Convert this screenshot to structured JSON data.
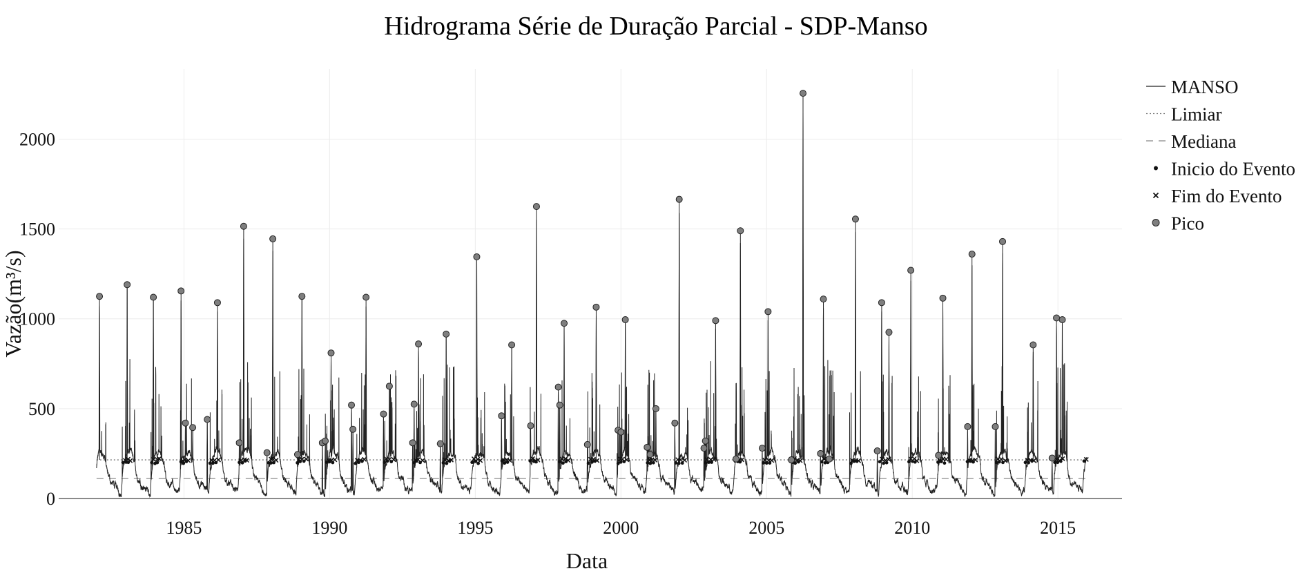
{
  "chart_data": {
    "type": "line",
    "title": "Hidrograma Série de Duração Parcial - SDP-Manso",
    "xlabel": "Data",
    "ylabel": "Vazão(m³/s)",
    "xlim": [
      1980.7,
      2017.2
    ],
    "ylim": [
      0,
      2390
    ],
    "x_ticks": [
      1985,
      1990,
      1995,
      2000,
      2005,
      2010,
      2015
    ],
    "x_tick_labels": [
      "1985",
      "1990",
      "1995",
      "2000",
      "2005",
      "2010",
      "2015"
    ],
    "y_ticks": [
      0,
      500,
      1000,
      1500,
      2000
    ],
    "y_tick_labels": [
      "0",
      "500",
      "1000",
      "1500",
      "2000"
    ],
    "grid": true,
    "legend_position": "right",
    "threshold": 215,
    "median": 112,
    "series": [
      {
        "name": "MANSO",
        "kind": "line",
        "color": "#222222",
        "dash": "solid"
      },
      {
        "name": "Limiar",
        "kind": "line",
        "color": "#777777",
        "dash": "dotted"
      },
      {
        "name": "Mediana",
        "kind": "line",
        "color": "#888888",
        "dash": "dashed"
      },
      {
        "name": "Inicio do Evento",
        "kind": "marker",
        "marker": "dot",
        "color": "#111111"
      },
      {
        "name": "Fim do Evento",
        "kind": "marker",
        "marker": "x",
        "color": "#111111"
      },
      {
        "name": "Pico",
        "kind": "marker",
        "marker": "circle",
        "color": "#7f7f7f"
      }
    ],
    "peaks": {
      "x": [
        1982.1,
        1983.05,
        1983.95,
        1984.9,
        1985.05,
        1985.3,
        1985.8,
        1986.15,
        1986.9,
        1987.05,
        1987.85,
        1988.05,
        1988.9,
        1989.05,
        1989.75,
        1989.85,
        1990.05,
        1990.75,
        1990.8,
        1991.25,
        1991.85,
        1992.05,
        1992.85,
        1992.9,
        1993.05,
        1993.8,
        1994.0,
        1995.05,
        1995.9,
        1996.25,
        1996.9,
        1997.1,
        1997.85,
        1997.9,
        1998.05,
        1998.85,
        1999.15,
        1999.9,
        2000.0,
        2000.15,
        2000.9,
        2001.0,
        2001.2,
        2001.85,
        2002.0,
        2002.85,
        2002.9,
        2003.25,
        2003.95,
        2004.1,
        2004.85,
        2005.05,
        2005.85,
        2006.25,
        2006.85,
        2006.95,
        2007.15,
        2008.05,
        2008.8,
        2008.95,
        2009.2,
        2009.95,
        2010.9,
        2011.05,
        2011.9,
        2012.05,
        2012.85,
        2013.1,
        2014.15,
        2014.8,
        2014.95,
        2015.15
      ],
      "y": [
        1125,
        1190,
        1120,
        1155,
        420,
        395,
        440,
        1090,
        310,
        1515,
        255,
        1445,
        245,
        1125,
        310,
        320,
        810,
        520,
        385,
        1120,
        470,
        625,
        310,
        525,
        860,
        305,
        915,
        1345,
        460,
        855,
        405,
        1625,
        620,
        520,
        975,
        300,
        1065,
        380,
        370,
        995,
        285,
        245,
        500,
        420,
        1665,
        280,
        320,
        990,
        220,
        1490,
        280,
        1040,
        215,
        2255,
        250,
        1110,
        220,
        1555,
        265,
        1090,
        925,
        1270,
        240,
        1115,
        400,
        1360,
        400,
        1430,
        855,
        225,
        1005,
        995
      ]
    }
  }
}
